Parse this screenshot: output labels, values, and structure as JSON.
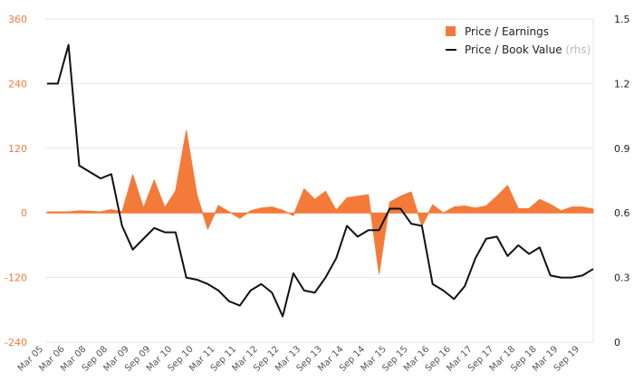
{
  "chart_data": {
    "type": "line",
    "colors": {
      "pe": "#f47a3a",
      "pb": "#111111",
      "left_axis": "#f47a3a",
      "right_axis": "#222222",
      "grid": "#e6e6e6"
    },
    "x_tick_labels": [
      "Mar 05",
      "Mar 06",
      "Mar 08",
      "Sep 08",
      "Mar 09",
      "Sep 09",
      "Mar 10",
      "Sep 10",
      "Mar 11",
      "Sep 11",
      "Mar 12",
      "Sep 12",
      "Mar 13",
      "Sep 13",
      "Mar 14",
      "Sep 14",
      "Mar 15",
      "Sep 15",
      "Mar 16",
      "Sep 16",
      "Mar 17",
      "Sep 17",
      "Mar 18",
      "Sep 18",
      "Mar 19",
      "Sep 19"
    ],
    "y_left": {
      "ticks": [
        360,
        240,
        120,
        0,
        -120,
        -240
      ],
      "ylim": [
        -240,
        360
      ]
    },
    "y_right": {
      "ticks": [
        "1.5",
        "1.2",
        "0.9",
        "0.6",
        "0.3",
        "0"
      ],
      "ylim": [
        0,
        1.5
      ]
    },
    "grid": "horizontal",
    "legend": {
      "position": "top-right",
      "items": [
        {
          "label": "Price / Earnings",
          "suffix": "",
          "marker": "square"
        },
        {
          "label": "Price / Book Value",
          "suffix": "(rhs)",
          "marker": "line"
        }
      ]
    },
    "series": [
      {
        "name": "Price / Earnings",
        "kind": "area",
        "axis": "left",
        "values": [
          2,
          2,
          2,
          4,
          3,
          2,
          6,
          2,
          71,
          9,
          61,
          10,
          41,
          153,
          33,
          -30,
          14,
          2,
          -10,
          4,
          9,
          11,
          5,
          -5,
          45,
          25,
          40,
          5,
          28,
          31,
          34,
          -113,
          20,
          31,
          39,
          -25,
          15,
          0,
          11,
          13,
          9,
          13,
          31,
          51,
          8,
          8,
          25,
          16,
          4,
          11,
          11,
          7
        ]
      },
      {
        "name": "Price / Book Value",
        "kind": "line",
        "axis": "right",
        "values": [
          1.2,
          1.2,
          1.38,
          0.82,
          0.79,
          0.76,
          0.78,
          0.54,
          0.43,
          0.48,
          0.53,
          0.51,
          0.51,
          0.3,
          0.29,
          0.27,
          0.24,
          0.19,
          0.17,
          0.24,
          0.27,
          0.23,
          0.12,
          0.32,
          0.24,
          0.23,
          0.3,
          0.39,
          0.54,
          0.49,
          0.52,
          0.52,
          0.62,
          0.62,
          0.55,
          0.54,
          0.27,
          0.24,
          0.2,
          0.26,
          0.39,
          0.48,
          0.49,
          0.4,
          0.45,
          0.41,
          0.44,
          0.31,
          0.3,
          0.3,
          0.31,
          0.34
        ]
      }
    ]
  }
}
